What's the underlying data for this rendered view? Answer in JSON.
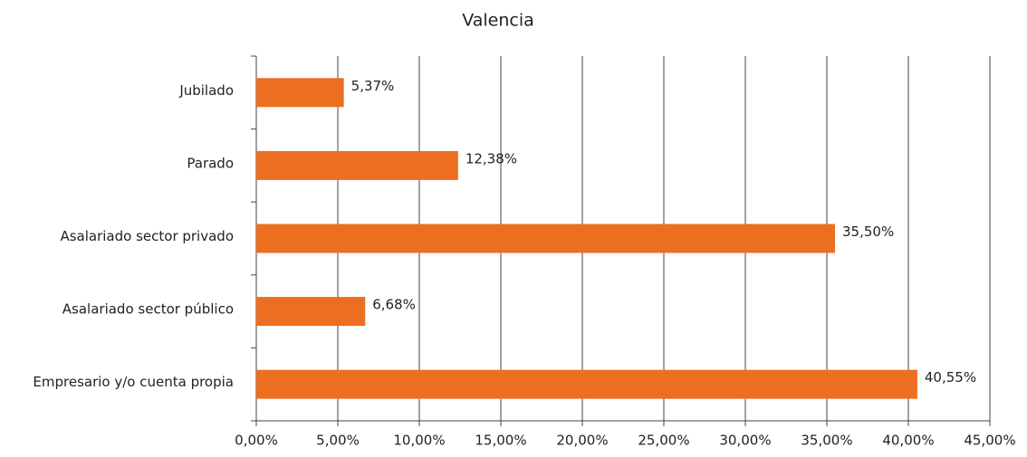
{
  "chart_data": {
    "type": "bar",
    "orientation": "horizontal",
    "title": "Valencia",
    "categories": [
      "Jubilado",
      "Parado",
      "Asalariado sector privado",
      "Asalariado sector público",
      "Empresario y/o cuenta propia"
    ],
    "values": [
      5.37,
      12.38,
      35.5,
      6.68,
      40.55
    ],
    "value_labels": [
      "5,37%",
      "12,38%",
      "35,50%",
      "6,68%",
      "40,55%"
    ],
    "color": "#ec6f21",
    "xlim": [
      0,
      45
    ],
    "xticks": [
      {
        "value": 0,
        "label": "0,00%"
      },
      {
        "value": 5,
        "label": "5,00%"
      },
      {
        "value": 10,
        "label": "10,00%"
      },
      {
        "value": 15,
        "label": "15,00%"
      },
      {
        "value": 20,
        "label": "20,00%"
      },
      {
        "value": 25,
        "label": "25,00%"
      },
      {
        "value": 30,
        "label": "30,00%"
      },
      {
        "value": 35,
        "label": "35,00%"
      },
      {
        "value": 40,
        "label": "40,00%"
      },
      {
        "value": 45,
        "label": "45,00%"
      }
    ],
    "grid": true
  }
}
